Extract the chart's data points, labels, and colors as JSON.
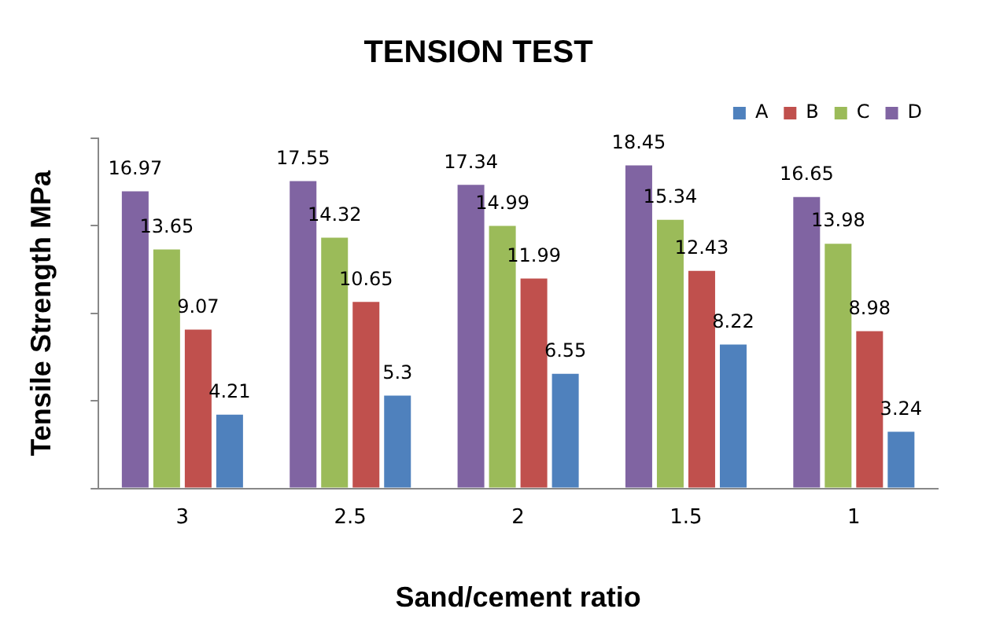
{
  "chart_data": {
    "type": "bar",
    "title": "TENSION TEST",
    "xlabel": "Sand/cement ratio",
    "ylabel": "Tensile Strength MPa",
    "categories": [
      "3",
      "2.5",
      "2",
      "1.5",
      "1"
    ],
    "series": [
      {
        "name": "D",
        "color": "#8064a2",
        "values": [
          16.97,
          17.55,
          17.34,
          18.45,
          16.65
        ]
      },
      {
        "name": "C",
        "color": "#9bbb59",
        "values": [
          13.65,
          14.32,
          14.99,
          15.34,
          13.98
        ]
      },
      {
        "name": "B",
        "color": "#c0504d",
        "values": [
          9.07,
          10.65,
          11.99,
          12.43,
          8.98
        ]
      },
      {
        "name": "A",
        "color": "#4f81bd",
        "values": [
          4.21,
          5.3,
          6.55,
          8.22,
          3.24
        ]
      }
    ],
    "data_labels": true,
    "legend": "top right",
    "grid": false,
    "tick_labels": "x"
  }
}
